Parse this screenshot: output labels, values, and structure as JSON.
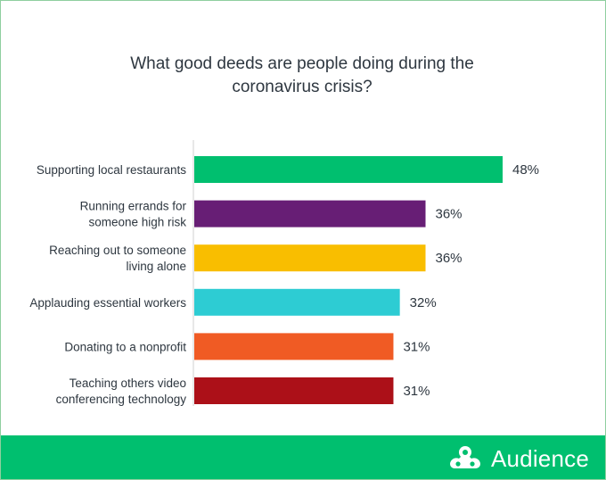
{
  "title_lines": [
    "What good deeds are people doing during the",
    "coronavirus crisis?"
  ],
  "brand": {
    "name": "Audience"
  },
  "colors": {
    "axis": "#d0d0d0",
    "text": "#2e3740",
    "footer": "#00bf6f"
  },
  "chart_data": {
    "type": "bar",
    "orientation": "horizontal",
    "title": "What good deeds are people doing during the coronavirus crisis?",
    "categories": [
      "Supporting local restaurants",
      "Running errands for someone high risk",
      "Reaching out to someone living alone",
      "Applauding essential workers",
      "Donating to a nonprofit",
      "Teaching others video conferencing technology"
    ],
    "category_lines": [
      [
        "Supporting local restaurants"
      ],
      [
        "Running errands for",
        "someone high risk"
      ],
      [
        "Reaching out to someone",
        "living alone"
      ],
      [
        "Applauding essential workers"
      ],
      [
        "Donating to a nonprofit"
      ],
      [
        "Teaching others video",
        "conferencing technology"
      ]
    ],
    "values": [
      48,
      36,
      36,
      32,
      31,
      31
    ],
    "value_labels": [
      "48%",
      "36%",
      "36%",
      "32%",
      "31%",
      "31%"
    ],
    "bar_colors": [
      "#00bf6f",
      "#671e75",
      "#f9be00",
      "#2dccd3",
      "#f05b24",
      "#ac1018"
    ],
    "unit": "%",
    "xlabel": "",
    "ylabel": "",
    "xlim": [
      0,
      48
    ],
    "grid": false,
    "legend": "none"
  }
}
